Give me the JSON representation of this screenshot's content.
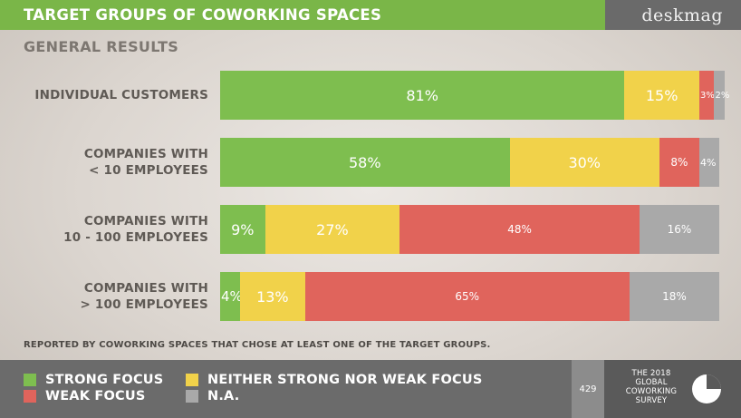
{
  "header": {
    "title": "TARGET GROUPS OF COWORKING SPACES",
    "brand": "deskmag"
  },
  "subtitle": "GENERAL RESULTS",
  "chart_data": {
    "type": "bar",
    "orientation": "horizontal",
    "stacked": true,
    "percent_stacked": true,
    "categories": [
      [
        "INDIVIDUAL CUSTOMERS"
      ],
      [
        "COMPANIES WITH",
        "< 10 EMPLOYEES"
      ],
      [
        "COMPANIES WITH",
        "10 - 100 EMPLOYEES"
      ],
      [
        "COMPANIES WITH",
        "> 100 EMPLOYEES"
      ]
    ],
    "series": [
      {
        "name": "STRONG FOCUS",
        "color": "#7ebe4f",
        "values": [
          81,
          58,
          9,
          4
        ]
      },
      {
        "name": "NEITHER STRONG NOR WEAK FOCUS",
        "color": "#f1d24a",
        "values": [
          15,
          30,
          27,
          13
        ]
      },
      {
        "name": "WEAK FOCUS",
        "color": "#e0645c",
        "values": [
          3,
          8,
          48,
          65
        ]
      },
      {
        "name": "N.A.",
        "color": "#a9a9a9",
        "values": [
          2,
          4,
          16,
          18
        ]
      }
    ],
    "value_suffix": "%",
    "xlim": [
      0,
      100
    ],
    "grid": false,
    "legend_position": "bottom"
  },
  "footnote": "REPORTED BY COWORKING SPACES THAT CHOSE AT LEAST ONE OF THE TARGET GROUPS.",
  "legend": [
    {
      "label": "STRONG FOCUS",
      "color": "#7ebe4f"
    },
    {
      "label": "NEITHER STRONG NOR WEAK FOCUS",
      "color": "#f1d24a"
    },
    {
      "label": "WEAK FOCUS",
      "color": "#e0645c"
    },
    {
      "label": "N.A.",
      "color": "#a9a9a9"
    }
  ],
  "footer": {
    "page_number": "429",
    "survey_lines": [
      "THE 2018",
      "GLOBAL",
      "COWORKING",
      "SURVEY"
    ],
    "logo_icon": "pie-chart-icon"
  }
}
